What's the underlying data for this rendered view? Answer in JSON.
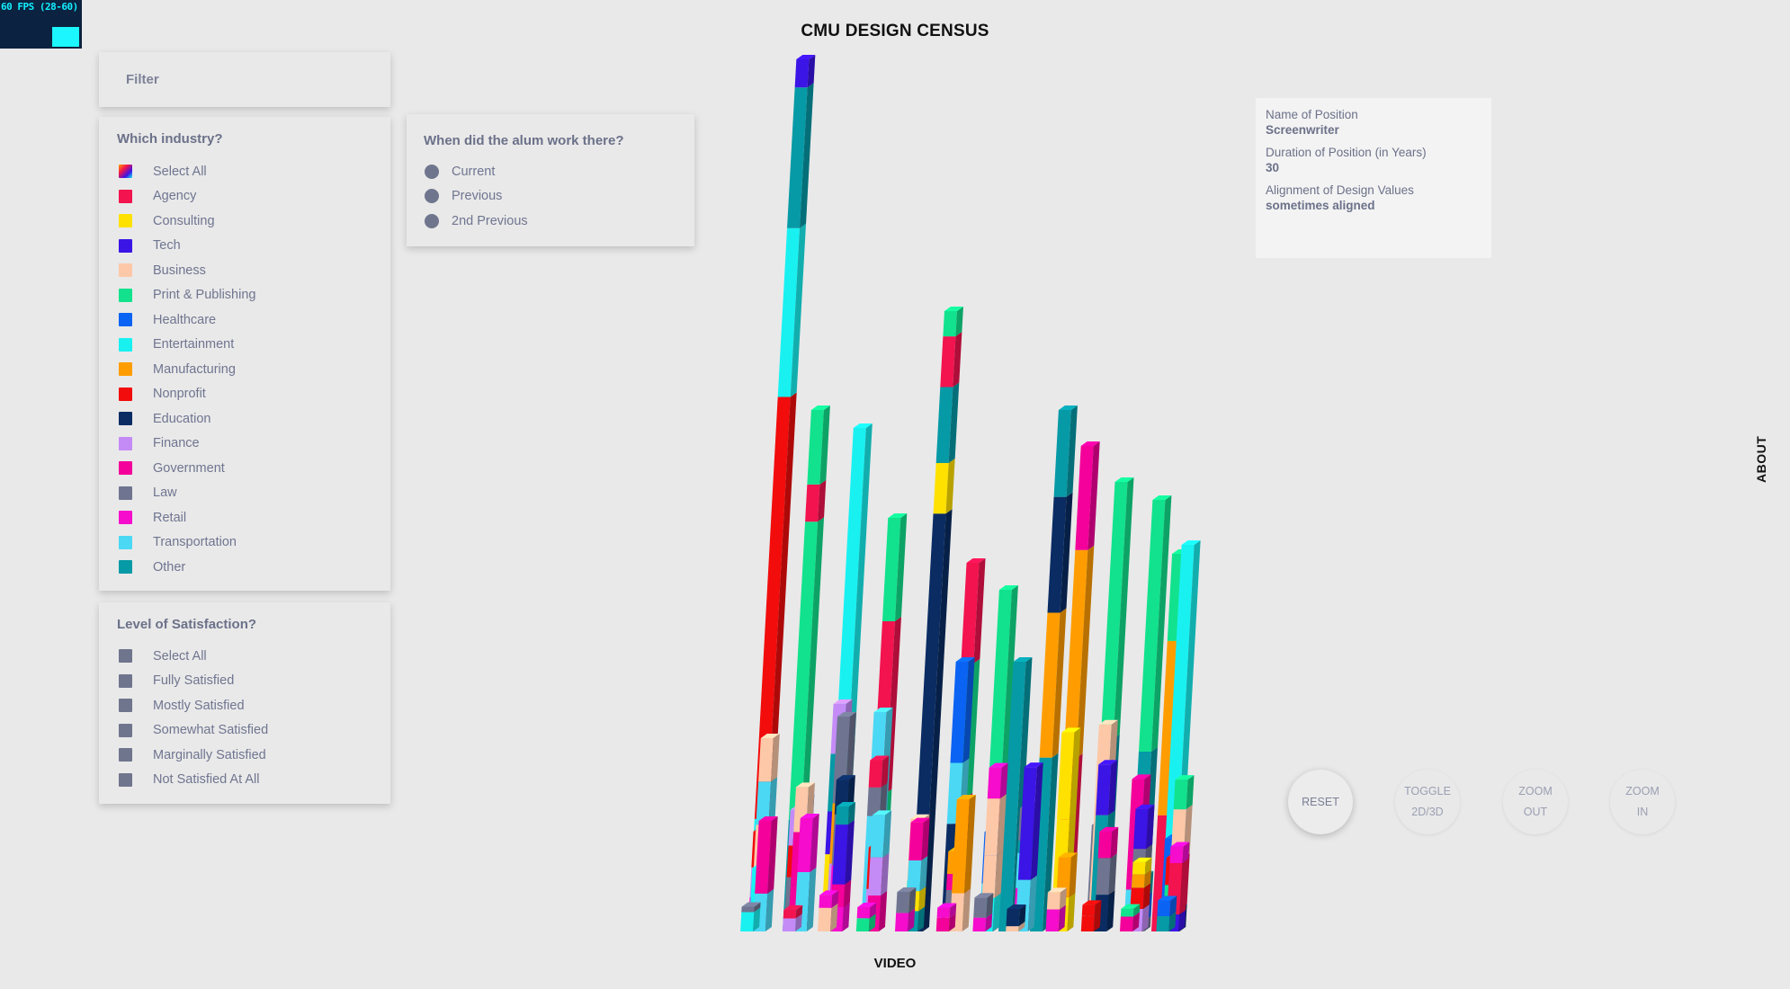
{
  "fps": {
    "label": "60 FPS (28-60)"
  },
  "header": {
    "title": "CMU DESIGN CENSUS"
  },
  "filter": {
    "label": "Filter"
  },
  "industry": {
    "heading": "Which industry?",
    "items": [
      {
        "label": "Select All",
        "color": "gradient"
      },
      {
        "label": "Agency",
        "color": "#f2134f"
      },
      {
        "label": "Consulting",
        "color": "#ffe100"
      },
      {
        "label": "Tech",
        "color": "#3b14e6"
      },
      {
        "label": "Business",
        "color": "#fdc8a8"
      },
      {
        "label": "Print & Publishing",
        "color": "#12e28d"
      },
      {
        "label": "Healthcare",
        "color": "#0b63f3"
      },
      {
        "label": "Entertainment",
        "color": "#19f1f1"
      },
      {
        "label": "Manufacturing",
        "color": "#ff9d00"
      },
      {
        "label": "Nonprofit",
        "color": "#f20c0c"
      },
      {
        "label": "Education",
        "color": "#0a2c63"
      },
      {
        "label": "Finance",
        "color": "#c48bf7"
      },
      {
        "label": "Government",
        "color": "#f4009a"
      },
      {
        "label": "Law",
        "color": "#6f7590"
      },
      {
        "label": "Retail",
        "color": "#f50ccc"
      },
      {
        "label": "Transportation",
        "color": "#4bd8f4"
      },
      {
        "label": "Other",
        "color": "#069aa6"
      }
    ]
  },
  "satisfaction": {
    "heading": "Level of Satisfaction?",
    "items": [
      {
        "label": "Select All"
      },
      {
        "label": "Fully Satisfied"
      },
      {
        "label": "Mostly Satisfied"
      },
      {
        "label": "Somewhat Satisfied"
      },
      {
        "label": "Marginally Satisfied"
      },
      {
        "label": "Not Satisfied At All"
      }
    ]
  },
  "when": {
    "heading": "When did the alum work there?",
    "items": [
      {
        "label": "Current"
      },
      {
        "label": "Previous"
      },
      {
        "label": "2nd Previous"
      }
    ]
  },
  "info": {
    "position_label": "Name of Position",
    "position_value": "Screenwriter",
    "duration_label": "Duration of Position (in Years)",
    "duration_value": "30",
    "alignment_label": "Alignment of Design Values",
    "alignment_value": "sometimes aligned"
  },
  "about": {
    "label": "ABOUT"
  },
  "axis": {
    "label": "VIDEO"
  },
  "controls": {
    "reset": "RESET",
    "toggle_line1": "TOGGLE",
    "toggle_line2": "2D/3D",
    "zoom_out_line1": "ZOOM",
    "zoom_out_line2": "OUT",
    "zoom_in_line1": "ZOOM",
    "zoom_in_line2": "IN"
  },
  "chart_data": {
    "type": "bar",
    "view": "3d",
    "series": [
      {
        "name": "Entertainment",
        "segments": [
          [
            "#19f1f1",
            8
          ],
          [
            "#f20c0c",
            30
          ],
          [
            "#19f1f1",
            12
          ],
          [
            "#069aa6",
            10
          ],
          [
            "#3b14e6",
            2
          ]
        ]
      },
      {
        "name": "Education",
        "segments": [
          [
            "#0a2c63",
            33
          ],
          [
            "#ffe100",
            4
          ],
          [
            "#069aa6",
            6
          ],
          [
            "#f2134f",
            4
          ],
          [
            "#12e28d",
            2
          ]
        ]
      }
    ]
  }
}
